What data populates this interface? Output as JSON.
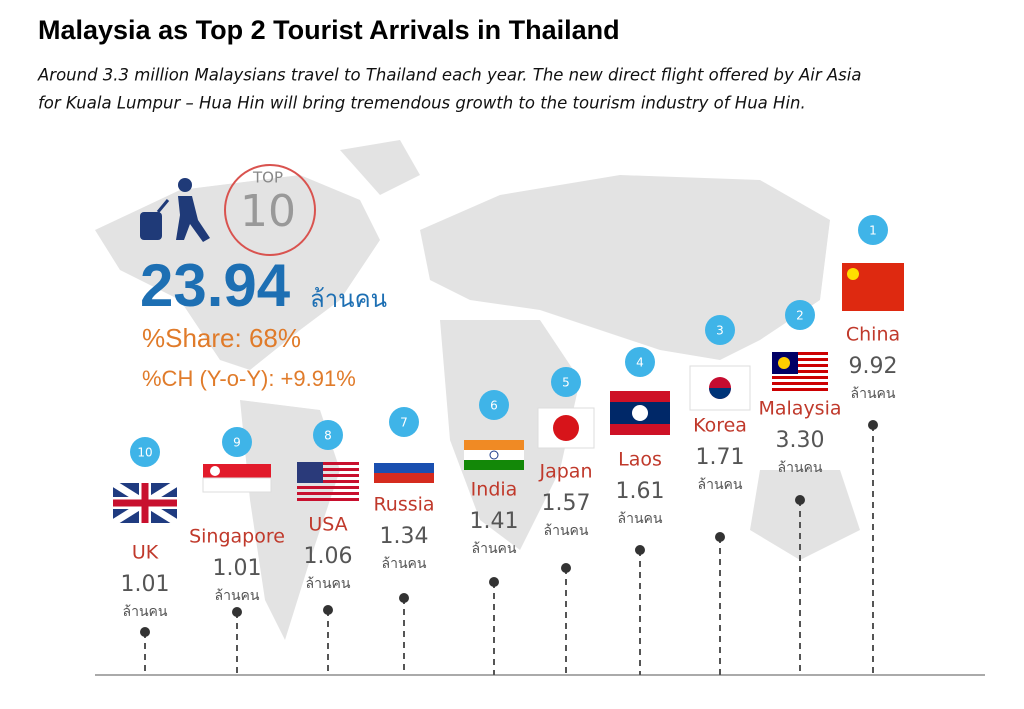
{
  "header": {
    "title": "Malaysia as Top 2 Tourist Arrivals in Thailand",
    "subtitle_lines": [
      "Around 3.3 million Malaysians travel to Thailand each year.  The new direct flight offered by Air Asia",
      "for Kuala Lumpur – Hua Hin will bring tremendous growth to the tourism industry of Hua Hin."
    ]
  },
  "summary": {
    "top_label": "TOP",
    "top_number": "10",
    "total": "23.94",
    "unit": "ล้านคน",
    "share": "%Share: 68%",
    "change": "%CH (Y-o-Y): +9.91%"
  },
  "countries": [
    {
      "rank": "10",
      "name": "UK",
      "value": "1.01"
    },
    {
      "rank": "9",
      "name": "Singapore",
      "value": "1.01"
    },
    {
      "rank": "8",
      "name": "USA",
      "value": "1.06"
    },
    {
      "rank": "7",
      "name": "Russia",
      "value": "1.34"
    },
    {
      "rank": "6",
      "name": "India",
      "value": "1.41"
    },
    {
      "rank": "5",
      "name": "Japan",
      "value": "1.57"
    },
    {
      "rank": "4",
      "name": "Laos",
      "value": "1.61"
    },
    {
      "rank": "3",
      "name": "Korea",
      "value": "1.71"
    },
    {
      "rank": "2",
      "name": "Malaysia",
      "value": "3.30"
    },
    {
      "rank": "1",
      "name": "China",
      "value": "9.92"
    }
  ]
}
